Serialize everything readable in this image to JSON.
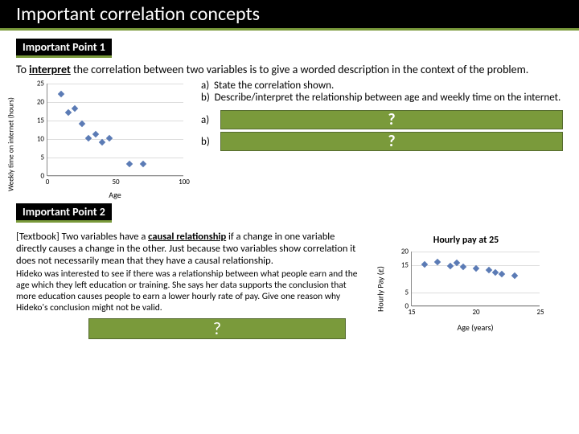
{
  "title": "Important correlation concepts",
  "point1": {
    "label": "Important Point 1",
    "text_pre": "To ",
    "text_underline": "interpret",
    "text_post": " the correlation between two variables is to give a worded description in the context of the problem.",
    "questions": {
      "a": "State the correlation shown.",
      "b": "Describe/interpret the relationship between age and weekly time on the internet."
    },
    "answer_labels": {
      "a": "a)",
      "b": "b)"
    },
    "answer_placeholder": "?"
  },
  "chart1": {
    "type": "scatter",
    "x_label": "Age",
    "y_label": "Weekly time on internet (hours)",
    "xlim": [
      0,
      100
    ],
    "ylim": [
      0,
      25
    ],
    "x_ticks": [
      0,
      50,
      100
    ],
    "y_ticks": [
      0,
      5,
      10,
      15,
      20,
      25
    ],
    "points": [
      {
        "x": 10,
        "y": 22
      },
      {
        "x": 15,
        "y": 17
      },
      {
        "x": 20,
        "y": 18
      },
      {
        "x": 25,
        "y": 14
      },
      {
        "x": 30,
        "y": 10
      },
      {
        "x": 35,
        "y": 11
      },
      {
        "x": 40,
        "y": 9
      },
      {
        "x": 45,
        "y": 10
      },
      {
        "x": 60,
        "y": 3
      },
      {
        "x": 70,
        "y": 3
      }
    ],
    "marker_color": "#5b7bb5",
    "grid_color": "#dddddd"
  },
  "point2": {
    "label": "Important Point 2",
    "textbook_pre": "[Textbook] Two variables have a ",
    "textbook_underline": "causal relationship",
    "textbook_post": " if a change in one variable directly causes a change in the other. Just because two variables show correlation it does not necessarily mean that they have a causal relationship.",
    "sub": "Hideko was interested to see if there was a relationship between what people earn and the age which they left education or training. She says her data supports the conclusion that more education causes people to earn a lower hourly rate of pay. Give one reason why Hideko's conclusion might not be valid.",
    "answer_placeholder": "?"
  },
  "chart2": {
    "type": "scatter",
    "title": "Hourly pay at 25",
    "x_label": "Age (years)",
    "y_label": "Hourly Pay (£)",
    "xlim": [
      15,
      25
    ],
    "ylim": [
      0,
      20
    ],
    "x_ticks": [
      15,
      20,
      25
    ],
    "y_ticks": [
      0,
      5,
      15,
      20
    ],
    "points": [
      {
        "x": 16,
        "y": 15
      },
      {
        "x": 17,
        "y": 16
      },
      {
        "x": 18,
        "y": 14.5
      },
      {
        "x": 18.5,
        "y": 15.5
      },
      {
        "x": 19,
        "y": 14
      },
      {
        "x": 20,
        "y": 13.5
      },
      {
        "x": 21,
        "y": 13
      },
      {
        "x": 21.5,
        "y": 12
      },
      {
        "x": 22,
        "y": 11.5
      },
      {
        "x": 23,
        "y": 11
      }
    ],
    "marker_color": "#5b7bb5",
    "grid_color": "#dddddd"
  },
  "colors": {
    "accent": "#7a9a3b",
    "accent_border": "#556b2f",
    "titlebar_bg": "#000000",
    "titlebar_fg": "#ffffff"
  }
}
